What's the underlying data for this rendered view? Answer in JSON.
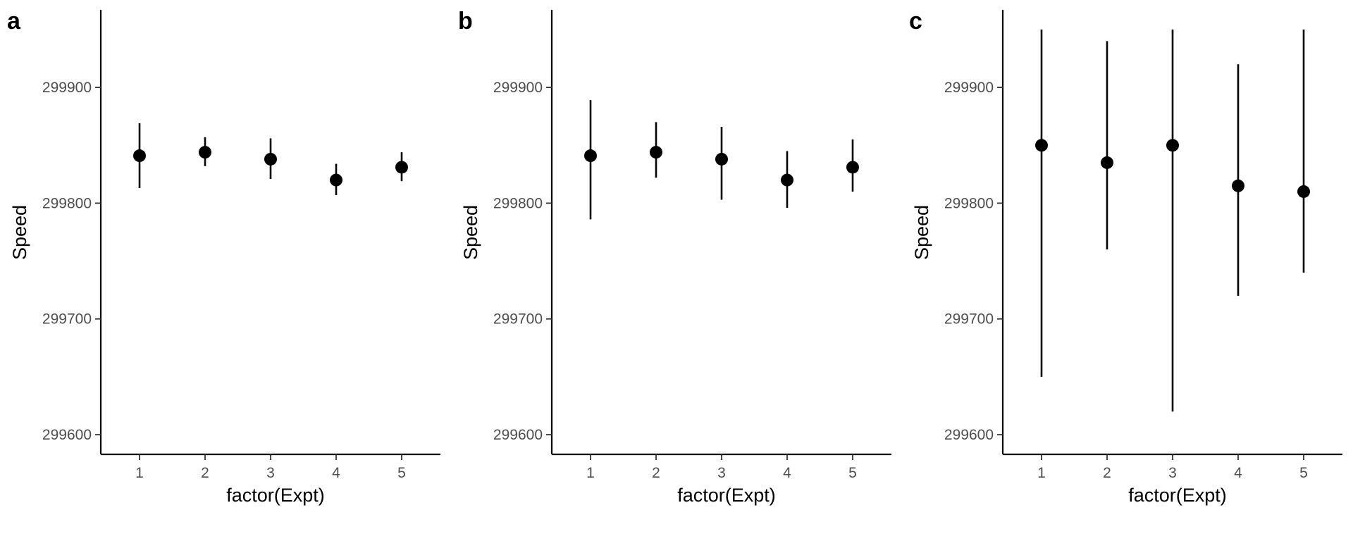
{
  "chart_data": [
    {
      "panel": "a",
      "type": "scatter",
      "xlabel": "factor(Expt)",
      "ylabel": "Speed",
      "categories": [
        "1",
        "2",
        "3",
        "4",
        "5"
      ],
      "yticks": [
        "299600",
        "299700",
        "299800",
        "299900"
      ],
      "ylim": [
        299583,
        299967
      ],
      "values": [
        299841,
        299844,
        299838,
        299820,
        299831
      ],
      "err_low": [
        299813,
        299832,
        299821,
        299807,
        299819
      ],
      "err_high": [
        299869,
        299857,
        299856,
        299834,
        299844
      ]
    },
    {
      "panel": "b",
      "type": "scatter",
      "xlabel": "factor(Expt)",
      "ylabel": "Speed",
      "categories": [
        "1",
        "2",
        "3",
        "4",
        "5"
      ],
      "yticks": [
        "299600",
        "299700",
        "299800",
        "299900"
      ],
      "ylim": [
        299583,
        299967
      ],
      "values": [
        299841,
        299844,
        299838,
        299820,
        299831
      ],
      "err_low": [
        299786,
        299822,
        299803,
        299796,
        299810
      ],
      "err_high": [
        299889,
        299870,
        299866,
        299845,
        299855
      ]
    },
    {
      "panel": "c",
      "type": "scatter",
      "xlabel": "factor(Expt)",
      "ylabel": "Speed",
      "categories": [
        "1",
        "2",
        "3",
        "4",
        "5"
      ],
      "yticks": [
        "299600",
        "299700",
        "299800",
        "299900"
      ],
      "ylim": [
        299583,
        299967
      ],
      "values": [
        299850,
        299835,
        299850,
        299815,
        299810
      ],
      "err_low": [
        299650,
        299760,
        299620,
        299720,
        299740
      ],
      "err_high": [
        299950,
        299940,
        299950,
        299920,
        299950
      ]
    }
  ]
}
